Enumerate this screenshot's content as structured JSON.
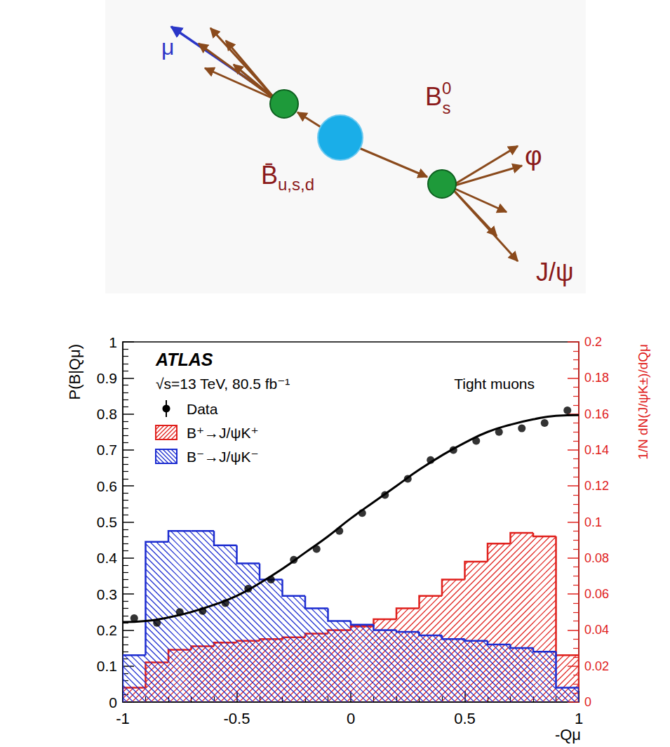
{
  "chart_data": {
    "type": "histogram",
    "title": "ATLAS",
    "subtitle": "√s=13 TeV, 80.5 fb⁻¹",
    "annotations": [
      "Tight muons"
    ],
    "x_label": "-Qμ",
    "y_label": "P(B|Qμ)",
    "y2_label": "1/N dN(J/ψK±)/dQμ",
    "xlim": [
      -1,
      1
    ],
    "xticks": [
      -1,
      -0.5,
      0,
      0.5,
      1
    ],
    "ylim": [
      0,
      1
    ],
    "yticks": [
      0,
      0.1,
      0.2,
      0.3,
      0.4,
      0.5,
      0.6,
      0.7,
      0.8,
      0.9,
      1
    ],
    "y2lim": [
      0,
      0.2
    ],
    "y2ticks": [
      0,
      0.02,
      0.04,
      0.06,
      0.08,
      0.1,
      0.12,
      0.14,
      0.16,
      0.18,
      0.2
    ],
    "grid": false,
    "legend": "upper left",
    "series": [
      {
        "name": "B⁺→J/ψK⁺",
        "type": "histogram",
        "color": "#e0201c",
        "axis": "y2",
        "bins": [
          -1,
          -0.9,
          -0.8,
          -0.7,
          -0.6,
          -0.5,
          -0.4,
          -0.3,
          -0.2,
          -0.1,
          0,
          0.1,
          0.2,
          0.3,
          0.4,
          0.5,
          0.6,
          0.7,
          0.8,
          0.9,
          1
        ],
        "values": [
          0.008,
          0.022,
          0.029,
          0.031,
          0.033,
          0.034,
          0.035,
          0.036,
          0.038,
          0.04,
          0.042,
          0.046,
          0.052,
          0.059,
          0.068,
          0.078,
          0.088,
          0.094,
          0.092,
          0.026
        ]
      },
      {
        "name": "B⁻→J/ψK⁻",
        "type": "histogram",
        "color": "#1c2cd0",
        "axis": "y2",
        "bins": [
          -1,
          -0.9,
          -0.8,
          -0.7,
          -0.6,
          -0.5,
          -0.4,
          -0.3,
          -0.2,
          -0.1,
          0,
          0.1,
          0.2,
          0.3,
          0.4,
          0.5,
          0.6,
          0.7,
          0.8,
          0.9,
          1
        ],
        "values": [
          0.026,
          0.089,
          0.095,
          0.095,
          0.087,
          0.077,
          0.068,
          0.059,
          0.052,
          0.045,
          0.043,
          0.04,
          0.039,
          0.037,
          0.035,
          0.034,
          0.032,
          0.03,
          0.028,
          0.008
        ]
      },
      {
        "type": "line",
        "color": "#000000",
        "line_style": "solid",
        "axis": "y",
        "x": [
          -1,
          -0.9,
          -0.8,
          -0.7,
          -0.6,
          -0.5,
          -0.4,
          -0.3,
          -0.2,
          -0.1,
          0,
          0.1,
          0.2,
          0.3,
          0.4,
          0.5,
          0.6,
          0.7,
          0.8,
          0.9,
          1
        ],
        "values": [
          0.222,
          0.225,
          0.235,
          0.25,
          0.27,
          0.295,
          0.33,
          0.37,
          0.415,
          0.46,
          0.51,
          0.555,
          0.6,
          0.645,
          0.685,
          0.72,
          0.75,
          0.77,
          0.785,
          0.795,
          0.797
        ]
      },
      {
        "name": "Data",
        "type": "scatter",
        "color": "#000000",
        "marker": "circle",
        "axis": "y",
        "x": [
          -0.95,
          -0.85,
          -0.75,
          -0.65,
          -0.55,
          -0.45,
          -0.35,
          -0.25,
          -0.15,
          -0.05,
          0.05,
          0.15,
          0.25,
          0.35,
          0.45,
          0.55,
          0.65,
          0.75,
          0.85,
          0.95
        ],
        "values": [
          0.233,
          0.22,
          0.25,
          0.253,
          0.275,
          0.315,
          0.34,
          0.395,
          0.425,
          0.475,
          0.525,
          0.575,
          0.62,
          0.672,
          0.7,
          0.725,
          0.75,
          0.76,
          0.775,
          0.81
        ]
      }
    ]
  },
  "diagram": {
    "labels": {
      "muon": "μ",
      "b_bar": "B̄",
      "b_bar_subscript": "u,s,d",
      "b_s": "B",
      "b_s_superscript": "0",
      "b_s_subscript": "s",
      "phi": "φ",
      "jpsi": "J/ψ"
    }
  }
}
